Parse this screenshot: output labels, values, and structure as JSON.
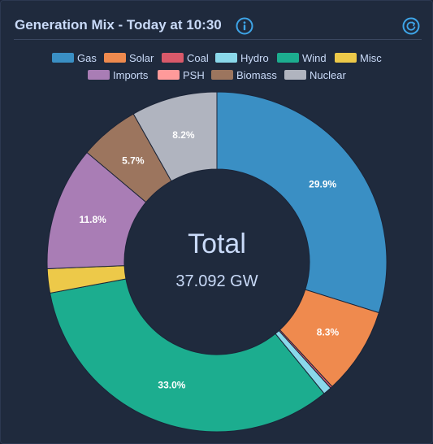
{
  "header": {
    "title": "Generation Mix - Today at 10:30",
    "info_icon": "info-circle-icon",
    "refresh_icon": "refresh-icon"
  },
  "center": {
    "title": "Total",
    "value": "37.092 GW"
  },
  "colors": {
    "accent": "#3ea5e8",
    "panel_bg": "#1f2a3d",
    "text": "#c9daf8",
    "label_text": "#ffffff",
    "slice_border": "#1b2437"
  },
  "chart_data": {
    "type": "pie",
    "variant": "donut",
    "total_label": "Total",
    "total_value": "37.092 GW",
    "legend_placement": "top-center",
    "start_angle_deg": 0,
    "direction": "clockwise",
    "slices": [
      {
        "name": "Gas",
        "value": 29.9,
        "label": "29.9%",
        "color": "#3a8fc4"
      },
      {
        "name": "Solar",
        "value": 8.3,
        "label": "8.3%",
        "color": "#ef8a4e"
      },
      {
        "name": "Coal",
        "value": 0.2,
        "label": "",
        "color": "#d9596a"
      },
      {
        "name": "Hydro",
        "value": 0.8,
        "label": "",
        "color": "#8ad8ea"
      },
      {
        "name": "Wind",
        "value": 33.0,
        "label": "33.0%",
        "color": "#1cad8f"
      },
      {
        "name": "Misc",
        "value": 2.3,
        "label": "",
        "color": "#edc949"
      },
      {
        "name": "Imports",
        "value": 11.8,
        "label": "11.8%",
        "color": "#a97db5"
      },
      {
        "name": "PSH",
        "value": 0.0,
        "label": "",
        "color": "#ff9a9a"
      },
      {
        "name": "Biomass",
        "value": 5.7,
        "label": "5.7%",
        "color": "#9c755e"
      },
      {
        "name": "Nuclear",
        "value": 8.2,
        "label": "8.2%",
        "color": "#b0b4bf"
      }
    ]
  }
}
